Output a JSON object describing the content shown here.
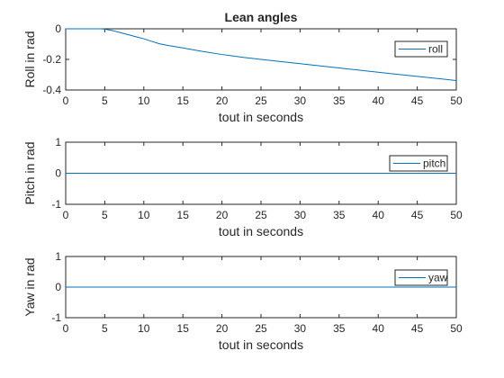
{
  "figure": {
    "background": "#ffffff",
    "line_color": "#0072BD",
    "axis_color": "#262626"
  },
  "chart_data": [
    {
      "type": "line",
      "title": "Lean angles",
      "xlabel": "tout in seconds",
      "ylabel": "Roll in rad",
      "xlim": [
        0,
        50
      ],
      "ylim": [
        -0.4,
        0
      ],
      "xticks": [
        0,
        5,
        10,
        15,
        20,
        25,
        30,
        35,
        40,
        45,
        50
      ],
      "yticks": [
        -0.4,
        -0.2,
        0
      ],
      "ytick_labels": [
        "-0.4",
        "-0.2",
        "0"
      ],
      "legend_position": "top-right",
      "series": [
        {
          "name": "roll",
          "x": [
            0,
            4.5,
            5,
            6,
            7,
            8,
            9,
            10,
            11,
            12,
            13,
            15,
            17.5,
            20,
            22.5,
            25,
            27.5,
            30,
            32.5,
            35,
            37.5,
            40,
            42.5,
            45,
            47.5,
            50
          ],
          "y": [
            0,
            0,
            -0.002,
            -0.012,
            -0.025,
            -0.038,
            -0.052,
            -0.065,
            -0.082,
            -0.098,
            -0.108,
            -0.125,
            -0.148,
            -0.168,
            -0.185,
            -0.2,
            -0.214,
            -0.228,
            -0.242,
            -0.256,
            -0.27,
            -0.284,
            -0.298,
            -0.311,
            -0.324,
            -0.338
          ]
        }
      ]
    },
    {
      "type": "line",
      "title": "",
      "xlabel": "tout in seconds",
      "ylabel": "Pitch in rad",
      "xlim": [
        0,
        50
      ],
      "ylim": [
        -1,
        1
      ],
      "xticks": [
        0,
        5,
        10,
        15,
        20,
        25,
        30,
        35,
        40,
        45,
        50
      ],
      "yticks": [
        -1,
        0,
        1
      ],
      "ytick_labels": [
        "-1",
        "0",
        "1"
      ],
      "legend_position": "top-right",
      "series": [
        {
          "name": "pitch",
          "x": [
            0,
            50
          ],
          "y": [
            0,
            0
          ]
        }
      ]
    },
    {
      "type": "line",
      "title": "",
      "xlabel": "tout in seconds",
      "ylabel": "Yaw in rad",
      "xlim": [
        0,
        50
      ],
      "ylim": [
        -1,
        1
      ],
      "xticks": [
        0,
        5,
        10,
        15,
        20,
        25,
        30,
        35,
        40,
        45,
        50
      ],
      "yticks": [
        -1,
        0,
        1
      ],
      "ytick_labels": [
        "-1",
        "0",
        "1"
      ],
      "legend_position": "top-right",
      "series": [
        {
          "name": "yaw",
          "x": [
            0,
            50
          ],
          "y": [
            0,
            0
          ]
        }
      ]
    }
  ]
}
